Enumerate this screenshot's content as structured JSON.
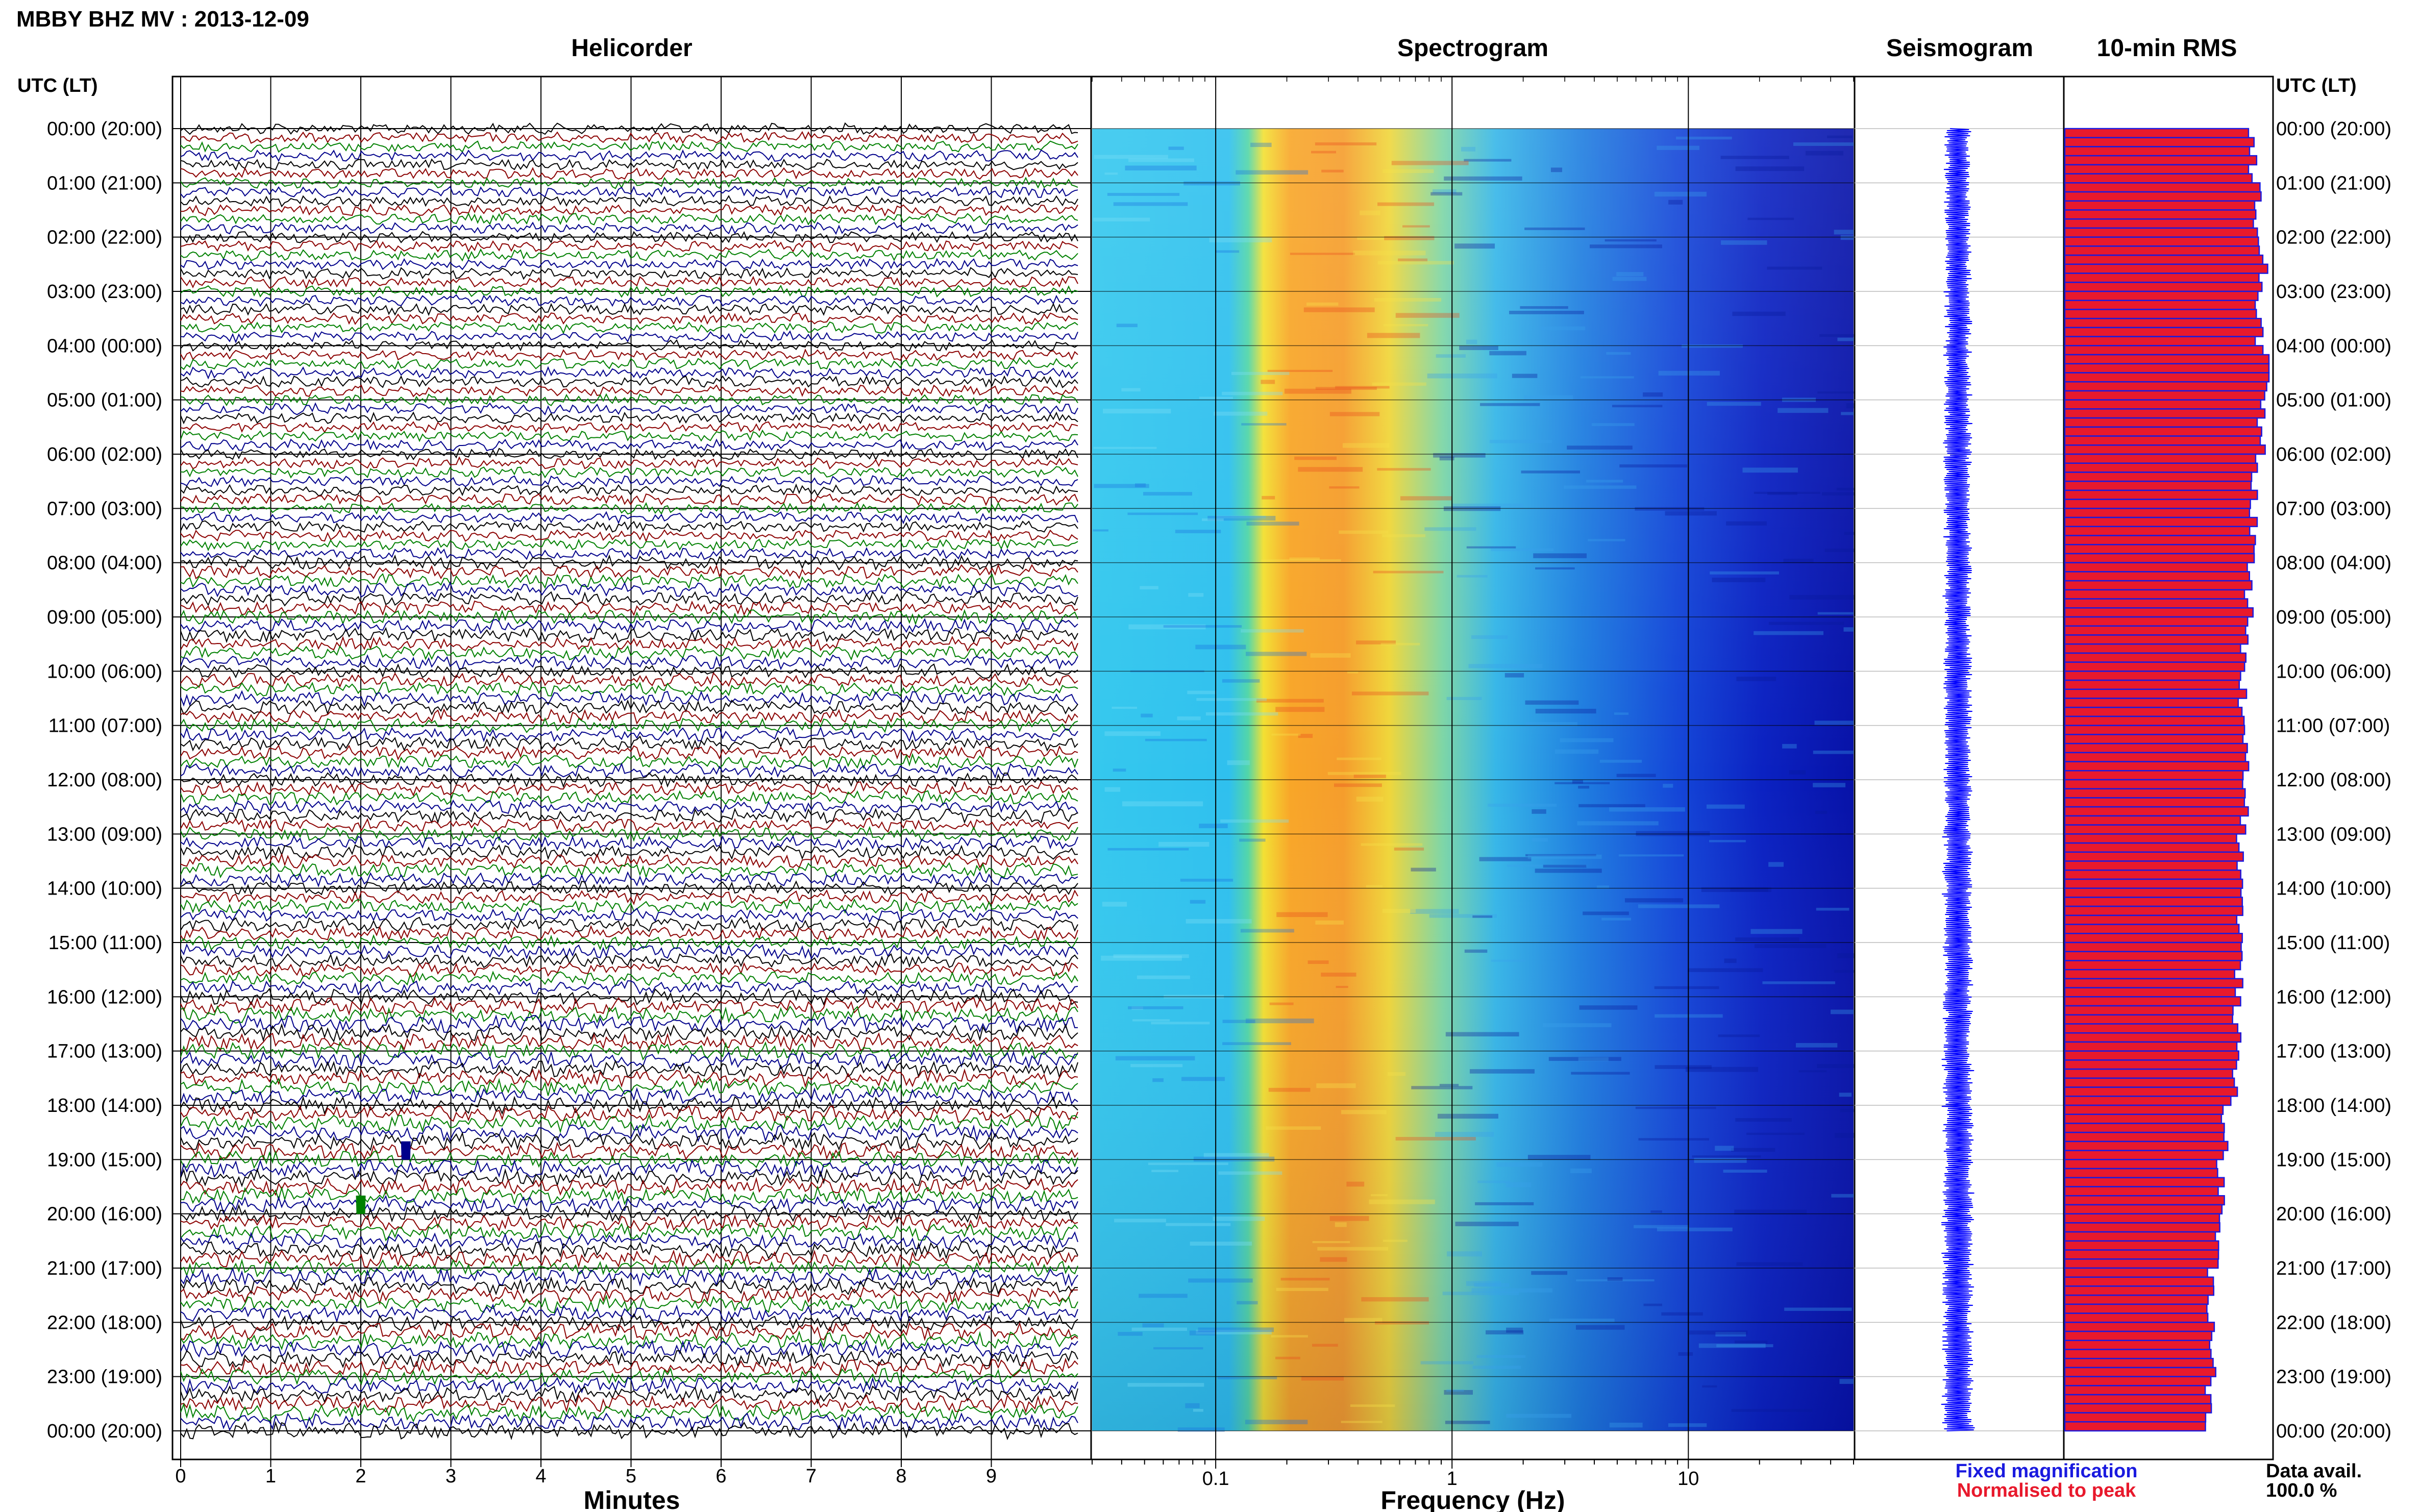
{
  "header": {
    "title": "MBBY BHZ MV : 2013-12-09"
  },
  "panels": {
    "helicorder": "Helicorder",
    "spectrogram": "Spectrogram",
    "seismogram": "Seismogram",
    "rms": "10-min RMS"
  },
  "utc_label": "UTC (LT)",
  "time_labels": [
    "00:00 (20:00)",
    "01:00 (21:00)",
    "02:00 (22:00)",
    "03:00 (23:00)",
    "04:00 (00:00)",
    "05:00 (01:00)",
    "06:00 (02:00)",
    "07:00 (03:00)",
    "08:00 (04:00)",
    "09:00 (05:00)",
    "10:00 (06:00)",
    "11:00 (07:00)",
    "12:00 (08:00)",
    "13:00 (09:00)",
    "14:00 (10:00)",
    "15:00 (11:00)",
    "16:00 (12:00)",
    "17:00 (13:00)",
    "18:00 (14:00)",
    "19:00 (15:00)",
    "20:00 (16:00)",
    "21:00 (17:00)",
    "22:00 (18:00)",
    "23:00 (19:00)",
    "00:00 (20:00)"
  ],
  "helicorder_axis": {
    "label": "Minutes",
    "ticks": [
      "0",
      "1",
      "2",
      "3",
      "4",
      "5",
      "6",
      "7",
      "8",
      "9"
    ]
  },
  "spectrogram_axis": {
    "label": "Frequency (Hz)",
    "ticks": [
      "0.1",
      "1",
      "10"
    ]
  },
  "legend": {
    "fixed": "Fixed magnification",
    "normalised": "Normalised to peak",
    "data_avail_label": "Data avail.",
    "data_avail_value": "100.0 %"
  },
  "colors": {
    "trace_cycle": [
      "#000000",
      "#8b0000",
      "#008000",
      "#00008b"
    ],
    "seismogram": "#0000ff",
    "rms_fill": "#e8192c",
    "rms_edge": "#1a1adf"
  },
  "chart_data": [
    {
      "type": "line",
      "panel": "Helicorder",
      "xlabel": "Minutes",
      "xlim": [
        0,
        10
      ],
      "ylabel": "UTC (LT)",
      "traces_per_hour": 6,
      "trace_count": 144,
      "series_colors": [
        "black",
        "dark red",
        "green",
        "dark blue"
      ],
      "note_events": [
        {
          "time_utc": "18:50",
          "minute": 2.5
        },
        {
          "time_utc": "19:50",
          "minute": 2.0
        }
      ]
    },
    {
      "type": "heatmap",
      "panel": "Spectrogram",
      "xlabel": "Frequency (Hz)",
      "xscale": "log",
      "xlim": [
        0.03,
        50
      ],
      "x_ticks": [
        0.1,
        1,
        10
      ],
      "colormap": "jet",
      "peak_energy_band_hz": [
        0.15,
        0.5
      ]
    },
    {
      "type": "line",
      "panel": "Seismogram",
      "color": "blue",
      "ylim_utc": [
        "00:00",
        "24:00"
      ]
    },
    {
      "type": "bar",
      "panel": "10-min RMS",
      "orientation": "horizontal",
      "bar_count": 144,
      "units": "normalised to peak",
      "xlim": [
        0,
        1
      ],
      "hourly_values": [
        0.93,
        0.95,
        0.98,
        0.96,
        1.0,
        0.97,
        0.94,
        0.93,
        0.91,
        0.89,
        0.88,
        0.9,
        0.89,
        0.87,
        0.87,
        0.86,
        0.85,
        0.84,
        0.79,
        0.77,
        0.76,
        0.72,
        0.73,
        0.71
      ]
    }
  ]
}
